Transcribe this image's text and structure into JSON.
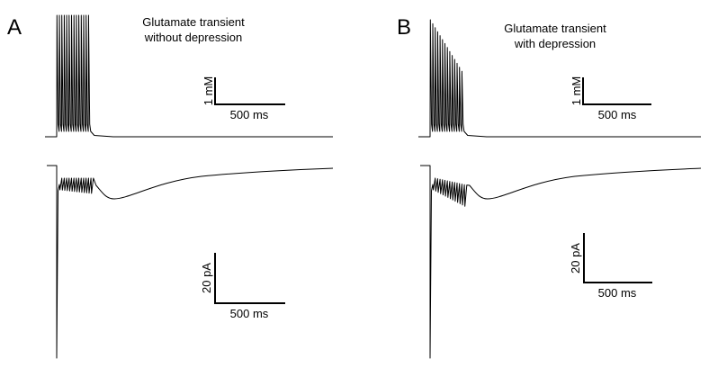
{
  "panels": [
    {
      "letter": "A",
      "title_line1": "Glutamate transient",
      "title_line2": "without depression",
      "depression": false,
      "glutamate_scalebar": {
        "y_label": "1 mM",
        "x_label": "500 ms"
      },
      "current_scalebar": {
        "y_label": "20 pA",
        "x_label": "500 ms"
      }
    },
    {
      "letter": "B",
      "title_line1": "Glutamate transient",
      "title_line2": "with depression",
      "depression": true,
      "glutamate_scalebar": {
        "y_label": "1 mM",
        "x_label": "500 ms"
      },
      "current_scalebar": {
        "y_label": "20 pA",
        "x_label": "500 ms"
      }
    }
  ],
  "stimulus": {
    "pulse_count": 14
  }
}
